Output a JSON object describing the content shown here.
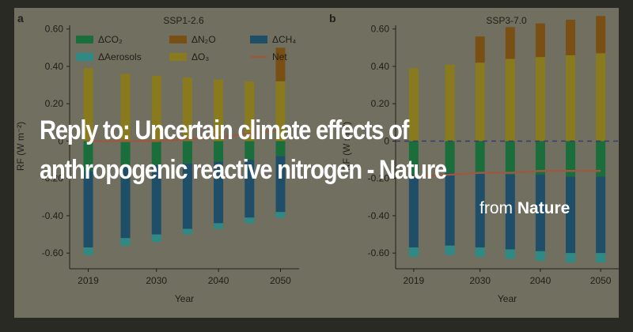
{
  "card": {
    "headline_line1": "Reply to: Uncertain climate effects of",
    "headline_line2": "anthropogenic reactive nitrogen - Nature",
    "source_prefix": "from",
    "source_name": "Nature"
  },
  "colors": {
    "co2": "#1a6e3c",
    "n2o": "#7a4f14",
    "ch4": "#1f4e68",
    "aerosols": "#2f8a86",
    "o3": "#8a7a1e",
    "net": "#9a5a42",
    "zero_line": "#3a3a6e",
    "axis": "#20201a",
    "background": "#706f60"
  },
  "chart_data": [
    {
      "type": "bar",
      "panel_label": "a",
      "title": "SSP1-2.6",
      "xlabel": "Year",
      "ylabel": "RF (W m⁻²)",
      "ylim": [
        -0.65,
        0.62
      ],
      "yticks": [
        "0.60",
        "0.40",
        "0.20",
        "0",
        "-0.20",
        "-0.40",
        "-0.60"
      ],
      "xticks": [
        "2019",
        "2030",
        "2040",
        "2050"
      ],
      "x": [
        2019,
        2025,
        2030,
        2035,
        2040,
        2045,
        2050
      ],
      "stacked": true,
      "legend": [
        "ΔCO₂",
        "ΔN₂O",
        "ΔCH₄",
        "ΔAerosols",
        "ΔO₃",
        "Net"
      ],
      "series": [
        {
          "name": "ΔO₃",
          "values": [
            0.39,
            0.36,
            0.35,
            0.34,
            0.33,
            0.32,
            0.32
          ]
        },
        {
          "name": "ΔN₂O",
          "values": [
            0.0,
            0.0,
            0.0,
            0.0,
            0.0,
            0.0,
            0.18
          ]
        },
        {
          "name": "ΔCO₂",
          "values": [
            -0.16,
            -0.14,
            -0.13,
            -0.12,
            -0.11,
            -0.1,
            -0.08
          ]
        },
        {
          "name": "ΔCH₄",
          "values": [
            -0.41,
            -0.38,
            -0.37,
            -0.35,
            -0.33,
            -0.31,
            -0.3
          ]
        },
        {
          "name": "ΔAerosols",
          "values": [
            -0.04,
            -0.04,
            -0.04,
            -0.03,
            -0.03,
            -0.03,
            -0.03
          ]
        }
      ],
      "net": [
        0.0,
        0.0,
        0.0,
        0.01,
        0.02,
        0.04,
        0.06
      ]
    },
    {
      "type": "bar",
      "panel_label": "b",
      "title": "SSP3-7.0",
      "xlabel": "Year",
      "ylabel": "RF (W m⁻²)",
      "ylim": [
        -0.65,
        0.62
      ],
      "yticks": [
        "0.60",
        "0.40",
        "0.20",
        "0",
        "-0.20",
        "-0.40",
        "-0.60"
      ],
      "xticks": [
        "2019",
        "2030",
        "2040",
        "2050"
      ],
      "x": [
        2019,
        2025,
        2030,
        2035,
        2040,
        2045,
        2050
      ],
      "stacked": true,
      "series": [
        {
          "name": "ΔO₃",
          "values": [
            0.39,
            0.41,
            0.42,
            0.44,
            0.45,
            0.46,
            0.47
          ]
        },
        {
          "name": "ΔN₂O",
          "values": [
            0.0,
            0.0,
            0.14,
            0.17,
            0.18,
            0.19,
            0.2
          ]
        },
        {
          "name": "ΔCO₂",
          "values": [
            -0.18,
            -0.17,
            -0.17,
            -0.18,
            -0.18,
            -0.19,
            -0.19
          ]
        },
        {
          "name": "ΔCH₄",
          "values": [
            -0.39,
            -0.39,
            -0.4,
            -0.4,
            -0.41,
            -0.41,
            -0.41
          ]
        },
        {
          "name": "ΔAerosols",
          "values": [
            -0.05,
            -0.05,
            -0.05,
            -0.05,
            -0.05,
            -0.05,
            -0.05
          ]
        }
      ],
      "net": [
        -0.19,
        -0.18,
        -0.17,
        -0.17,
        -0.16,
        -0.16,
        -0.16
      ]
    }
  ]
}
